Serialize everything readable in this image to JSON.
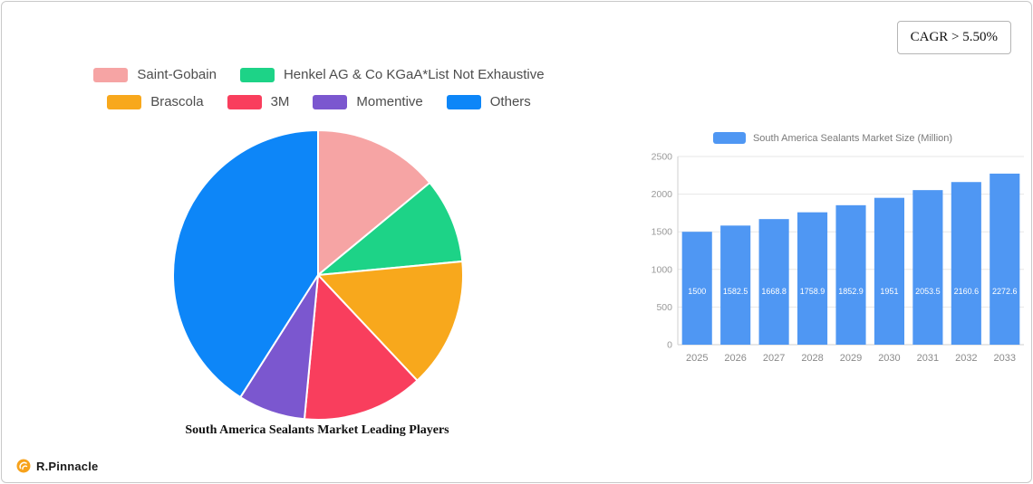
{
  "page": {
    "cagr_label": "CAGR > 5.50%",
    "brand": "R.Pinnacle"
  },
  "chart_data": [
    {
      "type": "pie",
      "title": "South America Sealants Market Leading Players",
      "legend_position": "top",
      "labels": [
        "Saint-Gobain",
        "Henkel AG & Co  KGaA*List Not Exhaustive",
        "Brascola",
        "3M",
        "Momentive",
        "Others"
      ],
      "values": [
        14,
        9.5,
        14.5,
        13.5,
        7.5,
        41
      ],
      "colors": [
        "#f6a4a4",
        "#1dd387",
        "#f8a81c",
        "#f93e5d",
        "#7b57cf",
        "#0d86f8"
      ]
    },
    {
      "type": "bar",
      "legend": "South America Sealants Market Size (Million)",
      "categories": [
        "2025",
        "2026",
        "2027",
        "2028",
        "2029",
        "2030",
        "2031",
        "2032",
        "2033"
      ],
      "values": [
        1500,
        1582.5,
        1668.8,
        1758.9,
        1852.9,
        1951,
        2053.5,
        2160.6,
        2272.6
      ],
      "value_labels": [
        "1500",
        "1582.5",
        "1668.8",
        "1758.9",
        "1852.9",
        "1951",
        "2053.5",
        "2160.6",
        "2272.6"
      ],
      "bar_color": "#4f97f3",
      "ylim": [
        0,
        2500
      ],
      "yticks": [
        0,
        500,
        1000,
        1500,
        2000,
        2500
      ],
      "grid": true,
      "legend_position": "top"
    }
  ]
}
